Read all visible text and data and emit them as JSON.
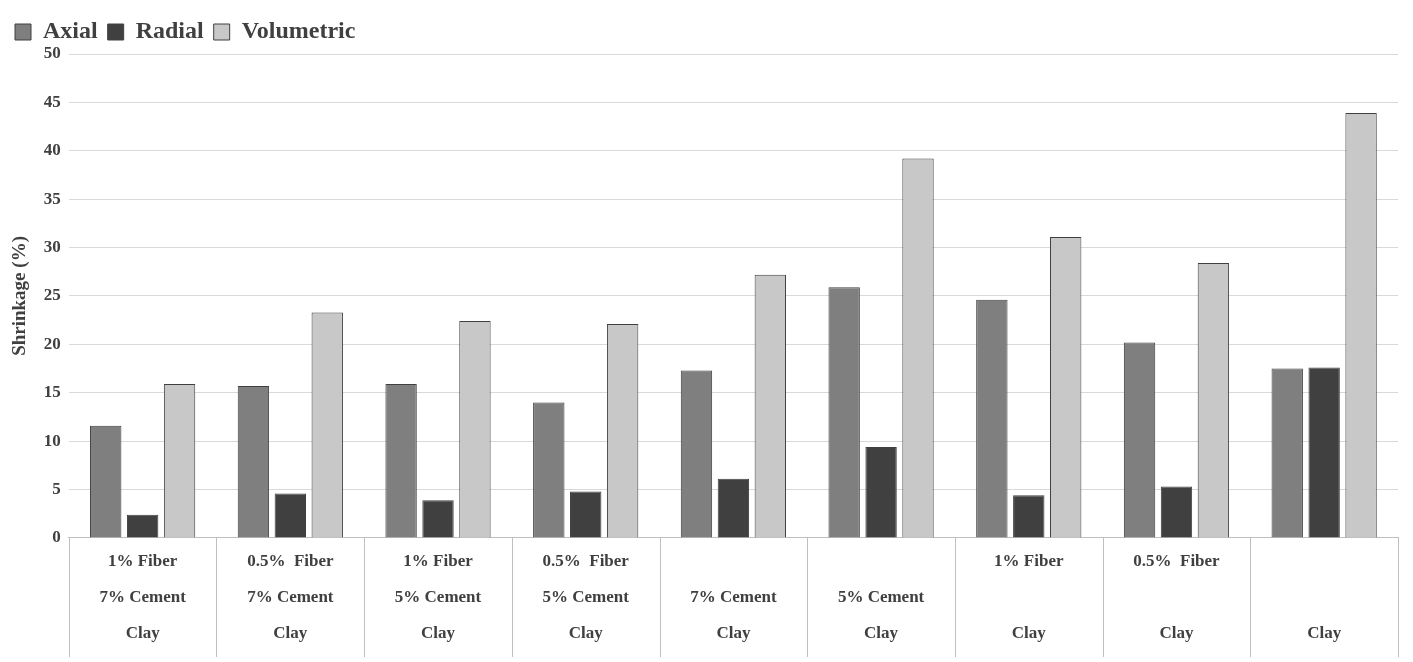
{
  "chart_data": {
    "type": "bar",
    "ylabel": "Shrinkage (%)",
    "categories": [
      "1% Fiber\n7% Cement\nClay",
      "0.5%  Fiber\n7% Cement\nClay",
      "1% Fiber\n5% Cement\nClay",
      "0.5%  Fiber\n5% Cement\nClay",
      "\n7% Cement\nClay",
      "\n5% Cement\nClay",
      "1% Fiber\n\nClay",
      "0.5%  Fiber\n\nClay",
      "\n\nClay"
    ],
    "series": [
      {
        "name": "Axial",
        "color": "#7f7f7f",
        "values": [
          11.6,
          15.7,
          15.9,
          14.0,
          17.3,
          25.9,
          24.6,
          20.2,
          17.5
        ]
      },
      {
        "name": "Radial",
        "color": "#404040",
        "values": [
          2.4,
          4.6,
          3.9,
          4.8,
          6.1,
          9.4,
          4.4,
          5.3,
          17.6
        ]
      },
      {
        "name": "Volumetric",
        "color": "#c8c8c8",
        "values": [
          15.9,
          23.3,
          22.4,
          22.1,
          27.2,
          39.2,
          31.1,
          28.4,
          43.9
        ]
      }
    ],
    "ylim": [
      0,
      50
    ],
    "yticks": [
      0,
      5,
      10,
      15,
      20,
      25,
      30,
      35,
      40,
      45,
      50
    ],
    "grid": "y",
    "legend": "top left"
  }
}
